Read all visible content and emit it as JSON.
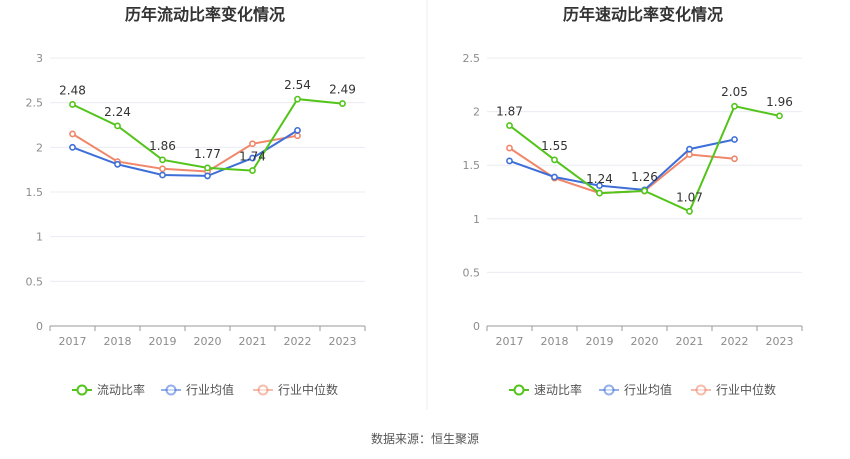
{
  "colors": {
    "current": "#52c41a",
    "avg": "#3e6fd8",
    "median": "#f0876a",
    "divider": "#eeeeee",
    "grid": "#e9ecf2",
    "axis": "#999999"
  },
  "chart_data": [
    {
      "type": "line",
      "title": "历年流动比率变化情况",
      "categories": [
        "2017",
        "2018",
        "2019",
        "2020",
        "2021",
        "2022",
        "2023"
      ],
      "ylim": [
        0,
        3
      ],
      "yticks": [
        "0",
        "0.5",
        "1",
        "1.5",
        "2",
        "2.5",
        "3"
      ],
      "legend_position": "bottom",
      "grid": true,
      "series": [
        {
          "name": "流动比率",
          "values": [
            2.48,
            2.24,
            1.86,
            1.77,
            1.74,
            2.54,
            2.49
          ],
          "labels": [
            "2.48",
            "2.24",
            "1.86",
            "1.77",
            "1.74",
            "2.54",
            "2.49"
          ]
        },
        {
          "name": "行业均值",
          "values": [
            2.0,
            1.81,
            1.69,
            1.68,
            1.88,
            2.19,
            null
          ]
        },
        {
          "name": "行业中位数",
          "values": [
            2.15,
            1.84,
            1.76,
            1.73,
            2.04,
            2.13,
            null
          ]
        }
      ]
    },
    {
      "type": "line",
      "title": "历年速动比率变化情况",
      "categories": [
        "2017",
        "2018",
        "2019",
        "2020",
        "2021",
        "2022",
        "2023"
      ],
      "ylim": [
        0,
        2.5
      ],
      "yticks": [
        "0",
        "0.5",
        "1",
        "1.5",
        "2",
        "2.5"
      ],
      "legend_position": "bottom",
      "grid": true,
      "series": [
        {
          "name": "速动比率",
          "values": [
            1.87,
            1.55,
            1.24,
            1.26,
            1.07,
            2.05,
            1.96
          ],
          "labels": [
            "1.87",
            "1.55",
            "1.24",
            "1.26",
            "1.07",
            "2.05",
            "1.96"
          ]
        },
        {
          "name": "行业均值",
          "values": [
            1.54,
            1.39,
            1.31,
            1.27,
            1.65,
            1.74,
            null
          ]
        },
        {
          "name": "行业中位数",
          "values": [
            1.66,
            1.38,
            1.24,
            1.26,
            1.6,
            1.56,
            null
          ]
        }
      ]
    }
  ],
  "footer": {
    "source": "数据来源：恒生聚源"
  }
}
